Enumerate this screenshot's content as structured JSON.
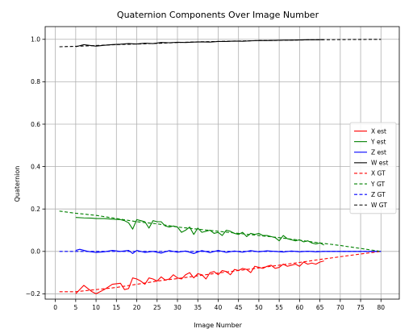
{
  "chart_data": {
    "type": "line",
    "title": "Quaternion Components Over Image Number",
    "xlabel": "Image Number",
    "ylabel": "Quaternion",
    "xlim": [
      -2.5,
      84.5
    ],
    "ylim": [
      -0.225,
      1.06
    ],
    "xticks": [
      0,
      5,
      10,
      15,
      20,
      25,
      30,
      35,
      40,
      45,
      50,
      55,
      60,
      65,
      70,
      75,
      80
    ],
    "yticks": [
      -0.2,
      0.0,
      0.2,
      0.4,
      0.6,
      0.8,
      1.0
    ],
    "ytick_labels": [
      "−0.2",
      "0.0",
      "0.2",
      "0.4",
      "0.6",
      "0.8",
      "1.0"
    ],
    "grid": true,
    "legend_position": "center-right",
    "series": [
      {
        "name": "X est",
        "color": "#ff0000",
        "style": "solid",
        "x": [
          5,
          7,
          9,
          10,
          12,
          14,
          16,
          17,
          18,
          19,
          20,
          21,
          22,
          23,
          24,
          25,
          26,
          27,
          28,
          29,
          30,
          31,
          32,
          33,
          34,
          35,
          36,
          37,
          38,
          39,
          40,
          41,
          42,
          43,
          44,
          45,
          46,
          47,
          48,
          49,
          50,
          51,
          52,
          53,
          54,
          55,
          56,
          57,
          58,
          59,
          60,
          61,
          62,
          63,
          64,
          65,
          66
        ],
        "y": [
          -0.2,
          -0.16,
          -0.19,
          -0.2,
          -0.18,
          -0.155,
          -0.15,
          -0.18,
          -0.175,
          -0.125,
          -0.13,
          -0.14,
          -0.155,
          -0.125,
          -0.13,
          -0.14,
          -0.12,
          -0.135,
          -0.13,
          -0.11,
          -0.125,
          -0.13,
          -0.11,
          -0.1,
          -0.125,
          -0.105,
          -0.11,
          -0.13,
          -0.1,
          -0.095,
          -0.11,
          -0.09,
          -0.095,
          -0.11,
          -0.085,
          -0.09,
          -0.08,
          -0.085,
          -0.1,
          -0.07,
          -0.075,
          -0.08,
          -0.07,
          -0.065,
          -0.08,
          -0.075,
          -0.06,
          -0.07,
          -0.065,
          -0.06,
          -0.07,
          -0.05,
          -0.06,
          -0.055,
          -0.06,
          -0.05,
          -0.045
        ]
      },
      {
        "name": "Y est",
        "color": "#008000",
        "style": "solid",
        "x": [
          5,
          7,
          9,
          10,
          12,
          14,
          16,
          17,
          18,
          19,
          20,
          21,
          22,
          23,
          24,
          25,
          26,
          27,
          28,
          29,
          30,
          31,
          32,
          33,
          34,
          35,
          36,
          37,
          38,
          39,
          40,
          41,
          42,
          43,
          44,
          45,
          46,
          47,
          48,
          49,
          50,
          51,
          52,
          53,
          54,
          55,
          56,
          57,
          58,
          59,
          60,
          61,
          62,
          63,
          64,
          65,
          66
        ],
        "y": [
          0.16,
          0.158,
          0.157,
          0.155,
          0.155,
          0.152,
          0.15,
          0.145,
          0.135,
          0.105,
          0.15,
          0.145,
          0.14,
          0.11,
          0.145,
          0.14,
          0.14,
          0.12,
          0.115,
          0.12,
          0.115,
          0.09,
          0.1,
          0.115,
          0.08,
          0.11,
          0.09,
          0.095,
          0.1,
          0.085,
          0.09,
          0.075,
          0.1,
          0.095,
          0.085,
          0.08,
          0.09,
          0.07,
          0.085,
          0.08,
          0.085,
          0.075,
          0.075,
          0.07,
          0.065,
          0.05,
          0.075,
          0.06,
          0.055,
          0.05,
          0.055,
          0.045,
          0.05,
          0.04,
          0.035,
          0.04,
          0.03
        ]
      },
      {
        "name": "Z est",
        "color": "#0000ff",
        "style": "solid",
        "x": [
          5,
          6,
          8,
          10,
          12,
          14,
          16,
          18,
          19,
          20,
          22,
          24,
          26,
          28,
          30,
          32,
          34,
          36,
          38,
          40,
          42,
          44,
          46,
          48,
          50,
          52,
          54,
          56,
          58,
          60,
          62,
          64,
          66,
          70,
          75,
          80
        ],
        "y": [
          0.005,
          0.01,
          0.0,
          -0.005,
          -0.002,
          0.005,
          0.0,
          0.005,
          -0.01,
          0.005,
          -0.005,
          0.0,
          -0.008,
          0.004,
          -0.004,
          0.002,
          -0.01,
          0.004,
          -0.006,
          0.005,
          -0.005,
          0.002,
          -0.004,
          0.004,
          -0.002,
          0.003,
          0.0,
          -0.003,
          0.002,
          -0.002,
          0.001,
          -0.002,
          0.0,
          0.0,
          0.0,
          0.0
        ]
      },
      {
        "name": "W est",
        "color": "#000000",
        "style": "solid",
        "x": [
          5,
          7,
          9,
          10,
          12,
          14,
          16,
          18,
          20,
          22,
          24,
          26,
          28,
          30,
          32,
          34,
          36,
          38,
          40,
          42,
          44,
          46,
          48,
          50,
          52,
          54,
          56,
          58,
          60,
          62,
          64,
          66
        ],
        "y": [
          0.965,
          0.975,
          0.97,
          0.968,
          0.972,
          0.975,
          0.977,
          0.98,
          0.978,
          0.982,
          0.98,
          0.985,
          0.984,
          0.986,
          0.985,
          0.987,
          0.988,
          0.987,
          0.99,
          0.99,
          0.992,
          0.991,
          0.993,
          0.994,
          0.994,
          0.995,
          0.996,
          0.996,
          0.997,
          0.998,
          0.998,
          0.999
        ]
      },
      {
        "name": "X GT",
        "color": "#ff0000",
        "style": "dashed",
        "x": [
          1,
          5,
          10,
          15,
          20,
          25,
          30,
          35,
          40,
          45,
          50,
          55,
          60,
          65,
          70,
          75,
          80
        ],
        "y": [
          -0.19,
          -0.19,
          -0.18,
          -0.17,
          -0.155,
          -0.14,
          -0.128,
          -0.115,
          -0.102,
          -0.09,
          -0.078,
          -0.065,
          -0.052,
          -0.038,
          -0.025,
          -0.012,
          0.0
        ]
      },
      {
        "name": "Y GT",
        "color": "#008000",
        "style": "dashed",
        "x": [
          1,
          5,
          10,
          15,
          20,
          25,
          30,
          35,
          40,
          45,
          50,
          55,
          60,
          65,
          70,
          75,
          80
        ],
        "y": [
          0.19,
          0.18,
          0.17,
          0.155,
          0.14,
          0.13,
          0.115,
          0.105,
          0.095,
          0.085,
          0.075,
          0.065,
          0.053,
          0.04,
          0.028,
          0.014,
          0.0
        ]
      },
      {
        "name": "Z GT",
        "color": "#0000ff",
        "style": "dashed",
        "x": [
          1,
          80
        ],
        "y": [
          0.0,
          0.0
        ]
      },
      {
        "name": "W GT",
        "color": "#000000",
        "style": "dashed",
        "x": [
          1,
          5,
          10,
          15,
          20,
          25,
          30,
          35,
          40,
          45,
          50,
          55,
          60,
          65,
          70,
          75,
          80
        ],
        "y": [
          0.965,
          0.967,
          0.971,
          0.975,
          0.978,
          0.981,
          0.985,
          0.988,
          0.99,
          0.992,
          0.994,
          0.995,
          0.997,
          0.998,
          0.999,
          0.9995,
          1.0
        ]
      }
    ]
  }
}
